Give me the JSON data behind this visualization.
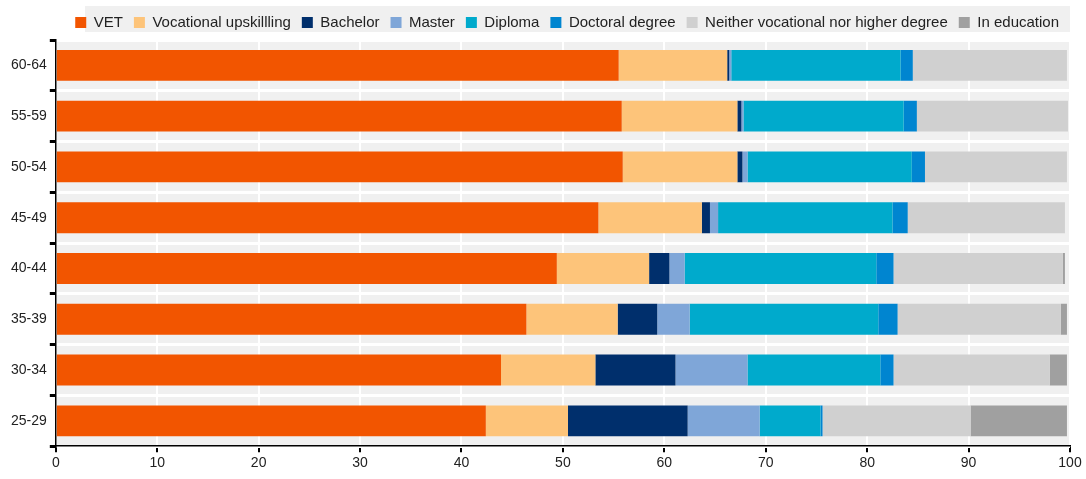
{
  "chart_data": {
    "type": "bar",
    "orientation": "horizontal",
    "stacked": true,
    "categories": [
      "60-64",
      "55-59",
      "50-54",
      "45-49",
      "40-44",
      "35-39",
      "30-34",
      "25-29"
    ],
    "series": [
      {
        "name": "VET",
        "color": "#f25500",
        "values": [
          55.5,
          55.8,
          55.9,
          53.5,
          49.4,
          46.4,
          43.9,
          42.4
        ]
      },
      {
        "name": "Vocational upskillling",
        "color": "#fdc47a",
        "values": [
          10.7,
          11.4,
          11.3,
          10.2,
          9.1,
          9.0,
          9.3,
          8.1
        ]
      },
      {
        "name": "Bachelor",
        "color": "#002f6c",
        "values": [
          0.2,
          0.4,
          0.5,
          0.8,
          2.0,
          3.9,
          7.9,
          11.8
        ]
      },
      {
        "name": "Master",
        "color": "#7fa6d8",
        "values": [
          0.2,
          0.2,
          0.5,
          0.8,
          1.5,
          3.2,
          7.1,
          7.1
        ]
      },
      {
        "name": "Diploma",
        "color": "#00aacc",
        "values": [
          16.7,
          15.8,
          16.2,
          17.2,
          18.9,
          18.6,
          13.1,
          6.0
        ]
      },
      {
        "name": "Doctoral degree",
        "color": "#0085d0",
        "values": [
          1.2,
          1.3,
          1.3,
          1.5,
          1.7,
          1.9,
          1.3,
          0.2
        ]
      },
      {
        "name": "Neither vocational nor higher degree",
        "color": "#d0d0d0",
        "values": [
          15.2,
          14.9,
          14.0,
          15.5,
          16.7,
          16.1,
          15.4,
          14.6
        ]
      },
      {
        "name": "In education",
        "color": "#a0a0a0",
        "values": [
          0,
          0,
          0,
          0,
          0.2,
          0.6,
          1.7,
          9.5
        ]
      }
    ],
    "xlim": [
      0,
      100
    ],
    "xticks": [
      0,
      10,
      20,
      30,
      40,
      50,
      60,
      70,
      80,
      90,
      100
    ],
    "grid": "x",
    "legend": "top"
  }
}
